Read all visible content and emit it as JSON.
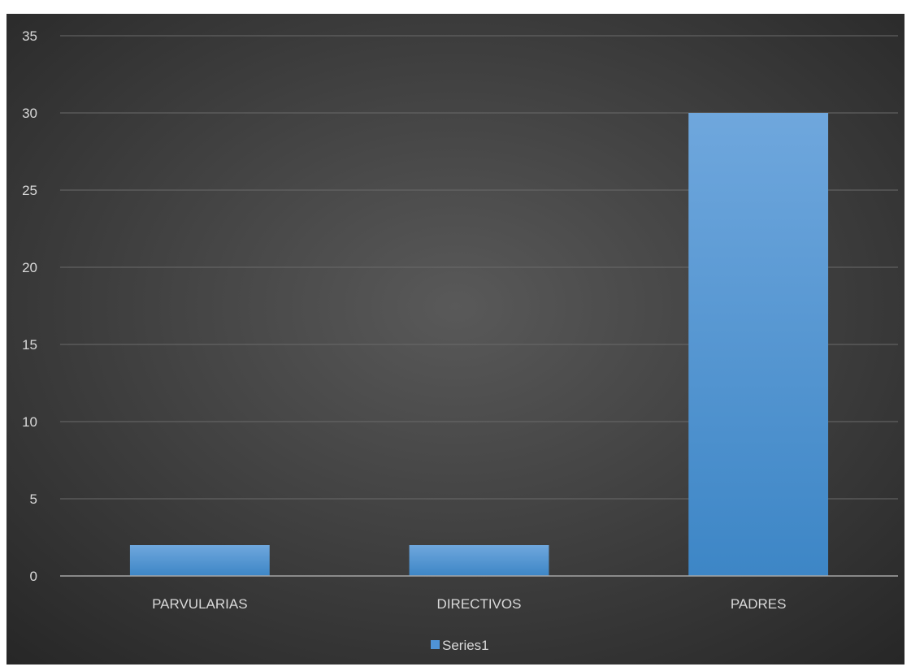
{
  "chart_data": {
    "type": "bar",
    "title": "",
    "xlabel": "",
    "ylabel": "",
    "categories": [
      "PARVULARIAS",
      "DIRECTIVOS",
      "PADRES"
    ],
    "series": [
      {
        "name": "Series1",
        "values": [
          2,
          2,
          30
        ]
      }
    ],
    "ylim": [
      0,
      35
    ],
    "yticks": [
      "0",
      "5",
      "10",
      "15",
      "20",
      "25",
      "30",
      "35"
    ],
    "grid": true,
    "legend": "bottom",
    "colors": {
      "background_center": "#595959",
      "background_edge": "#262626",
      "bar_top": "#6fa7dd",
      "bar_bottom": "#3d86c6",
      "gridline": "#6a6a6a",
      "axis": "#a6a6a6",
      "text": "#d9d9d9",
      "legend_swatch": "#4f93d6"
    }
  }
}
